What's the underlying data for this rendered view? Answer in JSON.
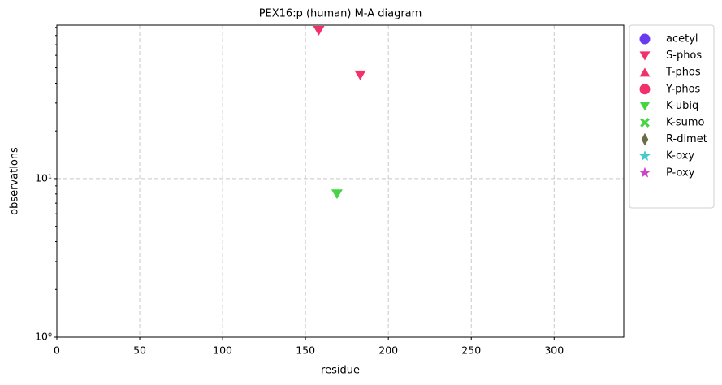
{
  "chart_data": {
    "type": "scatter",
    "title": "PEX16:p (human) M-A diagram",
    "xlabel": "residue",
    "ylabel": "observations",
    "xlim": [
      0,
      342
    ],
    "xticks": [
      0,
      50,
      100,
      150,
      200,
      250,
      300
    ],
    "ylim": [
      1,
      93
    ],
    "ylog": true,
    "yticks": [
      {
        "value": 1,
        "label": "10⁰"
      },
      {
        "value": 10,
        "label": "10¹"
      }
    ],
    "yminorticks": [
      2,
      3,
      4,
      5,
      6,
      7,
      8,
      9,
      20,
      30,
      40,
      50,
      60,
      70,
      80,
      90
    ],
    "grid": true,
    "legend": "outside-right",
    "series": [
      {
        "name": "acetyl",
        "color": "#6a3af0",
        "marker": "circle",
        "x": [],
        "values": []
      },
      {
        "name": "S-phos",
        "color": "#f2306a",
        "marker": "triangle-down",
        "x": [
          158,
          183
        ],
        "values": [
          86,
          45
        ]
      },
      {
        "name": "T-phos",
        "color": "#f2306a",
        "marker": "triangle-up",
        "x": [],
        "values": []
      },
      {
        "name": "Y-phos",
        "color": "#f2306a",
        "marker": "circle",
        "x": [],
        "values": []
      },
      {
        "name": "K-ubiq",
        "color": "#44d444",
        "marker": "triangle-down",
        "x": [
          169
        ],
        "values": [
          8
        ]
      },
      {
        "name": "K-sumo",
        "color": "#44d444",
        "marker": "x",
        "x": [],
        "values": []
      },
      {
        "name": "R-dimet",
        "color": "#6b6b47",
        "marker": "diamond",
        "x": [],
        "values": []
      },
      {
        "name": "K-oxy",
        "color": "#44cccc",
        "marker": "star",
        "x": [],
        "values": []
      },
      {
        "name": "P-oxy",
        "color": "#cc44cc",
        "marker": "star",
        "x": [],
        "values": []
      }
    ]
  }
}
